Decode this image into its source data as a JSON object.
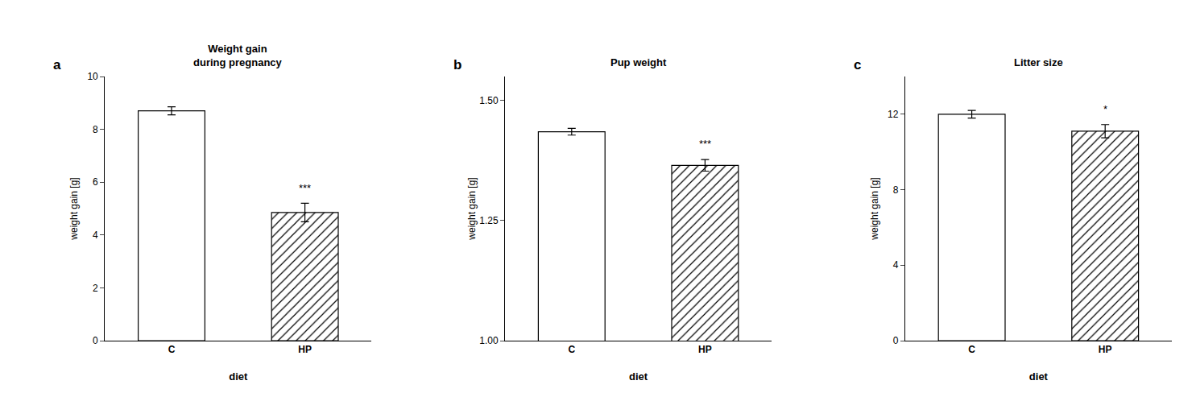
{
  "chart_data": [
    {
      "type": "bar",
      "title": "Weight gain\nduring pregnancy",
      "x_label": "diet",
      "y_label": "weight gain [g]",
      "categories": [
        "C",
        "HP"
      ],
      "values": [
        8.7,
        4.85
      ],
      "errors": [
        0.15,
        0.35
      ],
      "color": "#ffffff",
      "ylim": [
        0,
        10
      ],
      "yticks": [
        0,
        2,
        4,
        6,
        8,
        10
      ],
      "grid": false,
      "annotations": [
        {
          "text": "a"
        },
        {
          "text": "***",
          "x": "HP"
        }
      ]
    },
    {
      "type": "bar",
      "title": "Pup weight",
      "x_label": "diet",
      "y_label": "weight gain [g]",
      "categories": [
        "C",
        "HP"
      ],
      "values": [
        1.435,
        1.365
      ],
      "errors": [
        0.007,
        0.012
      ],
      "color": "#ffffff",
      "ylim": [
        1.0,
        1.55
      ],
      "yticks": [
        {
          "value": 1.0,
          "label": "1.00"
        },
        1.25,
        {
          "value": 1.5,
          "label": "1.50"
        }
      ],
      "grid": false,
      "annotations": [
        {
          "text": "b"
        },
        {
          "text": "***",
          "x": "HP"
        }
      ]
    },
    {
      "type": "bar",
      "title": "Litter size",
      "x_label": "diet",
      "y_label": "weight gain [g]",
      "categories": [
        "C",
        "HP"
      ],
      "values": [
        12.0,
        11.1
      ],
      "errors": [
        0.2,
        0.35
      ],
      "color": "#ffffff",
      "ylim": [
        0,
        14
      ],
      "yticks": [
        0,
        4,
        8,
        12
      ],
      "grid": false,
      "annotations": [
        {
          "text": "c"
        },
        {
          "text": "*",
          "x": "HP"
        }
      ]
    }
  ]
}
